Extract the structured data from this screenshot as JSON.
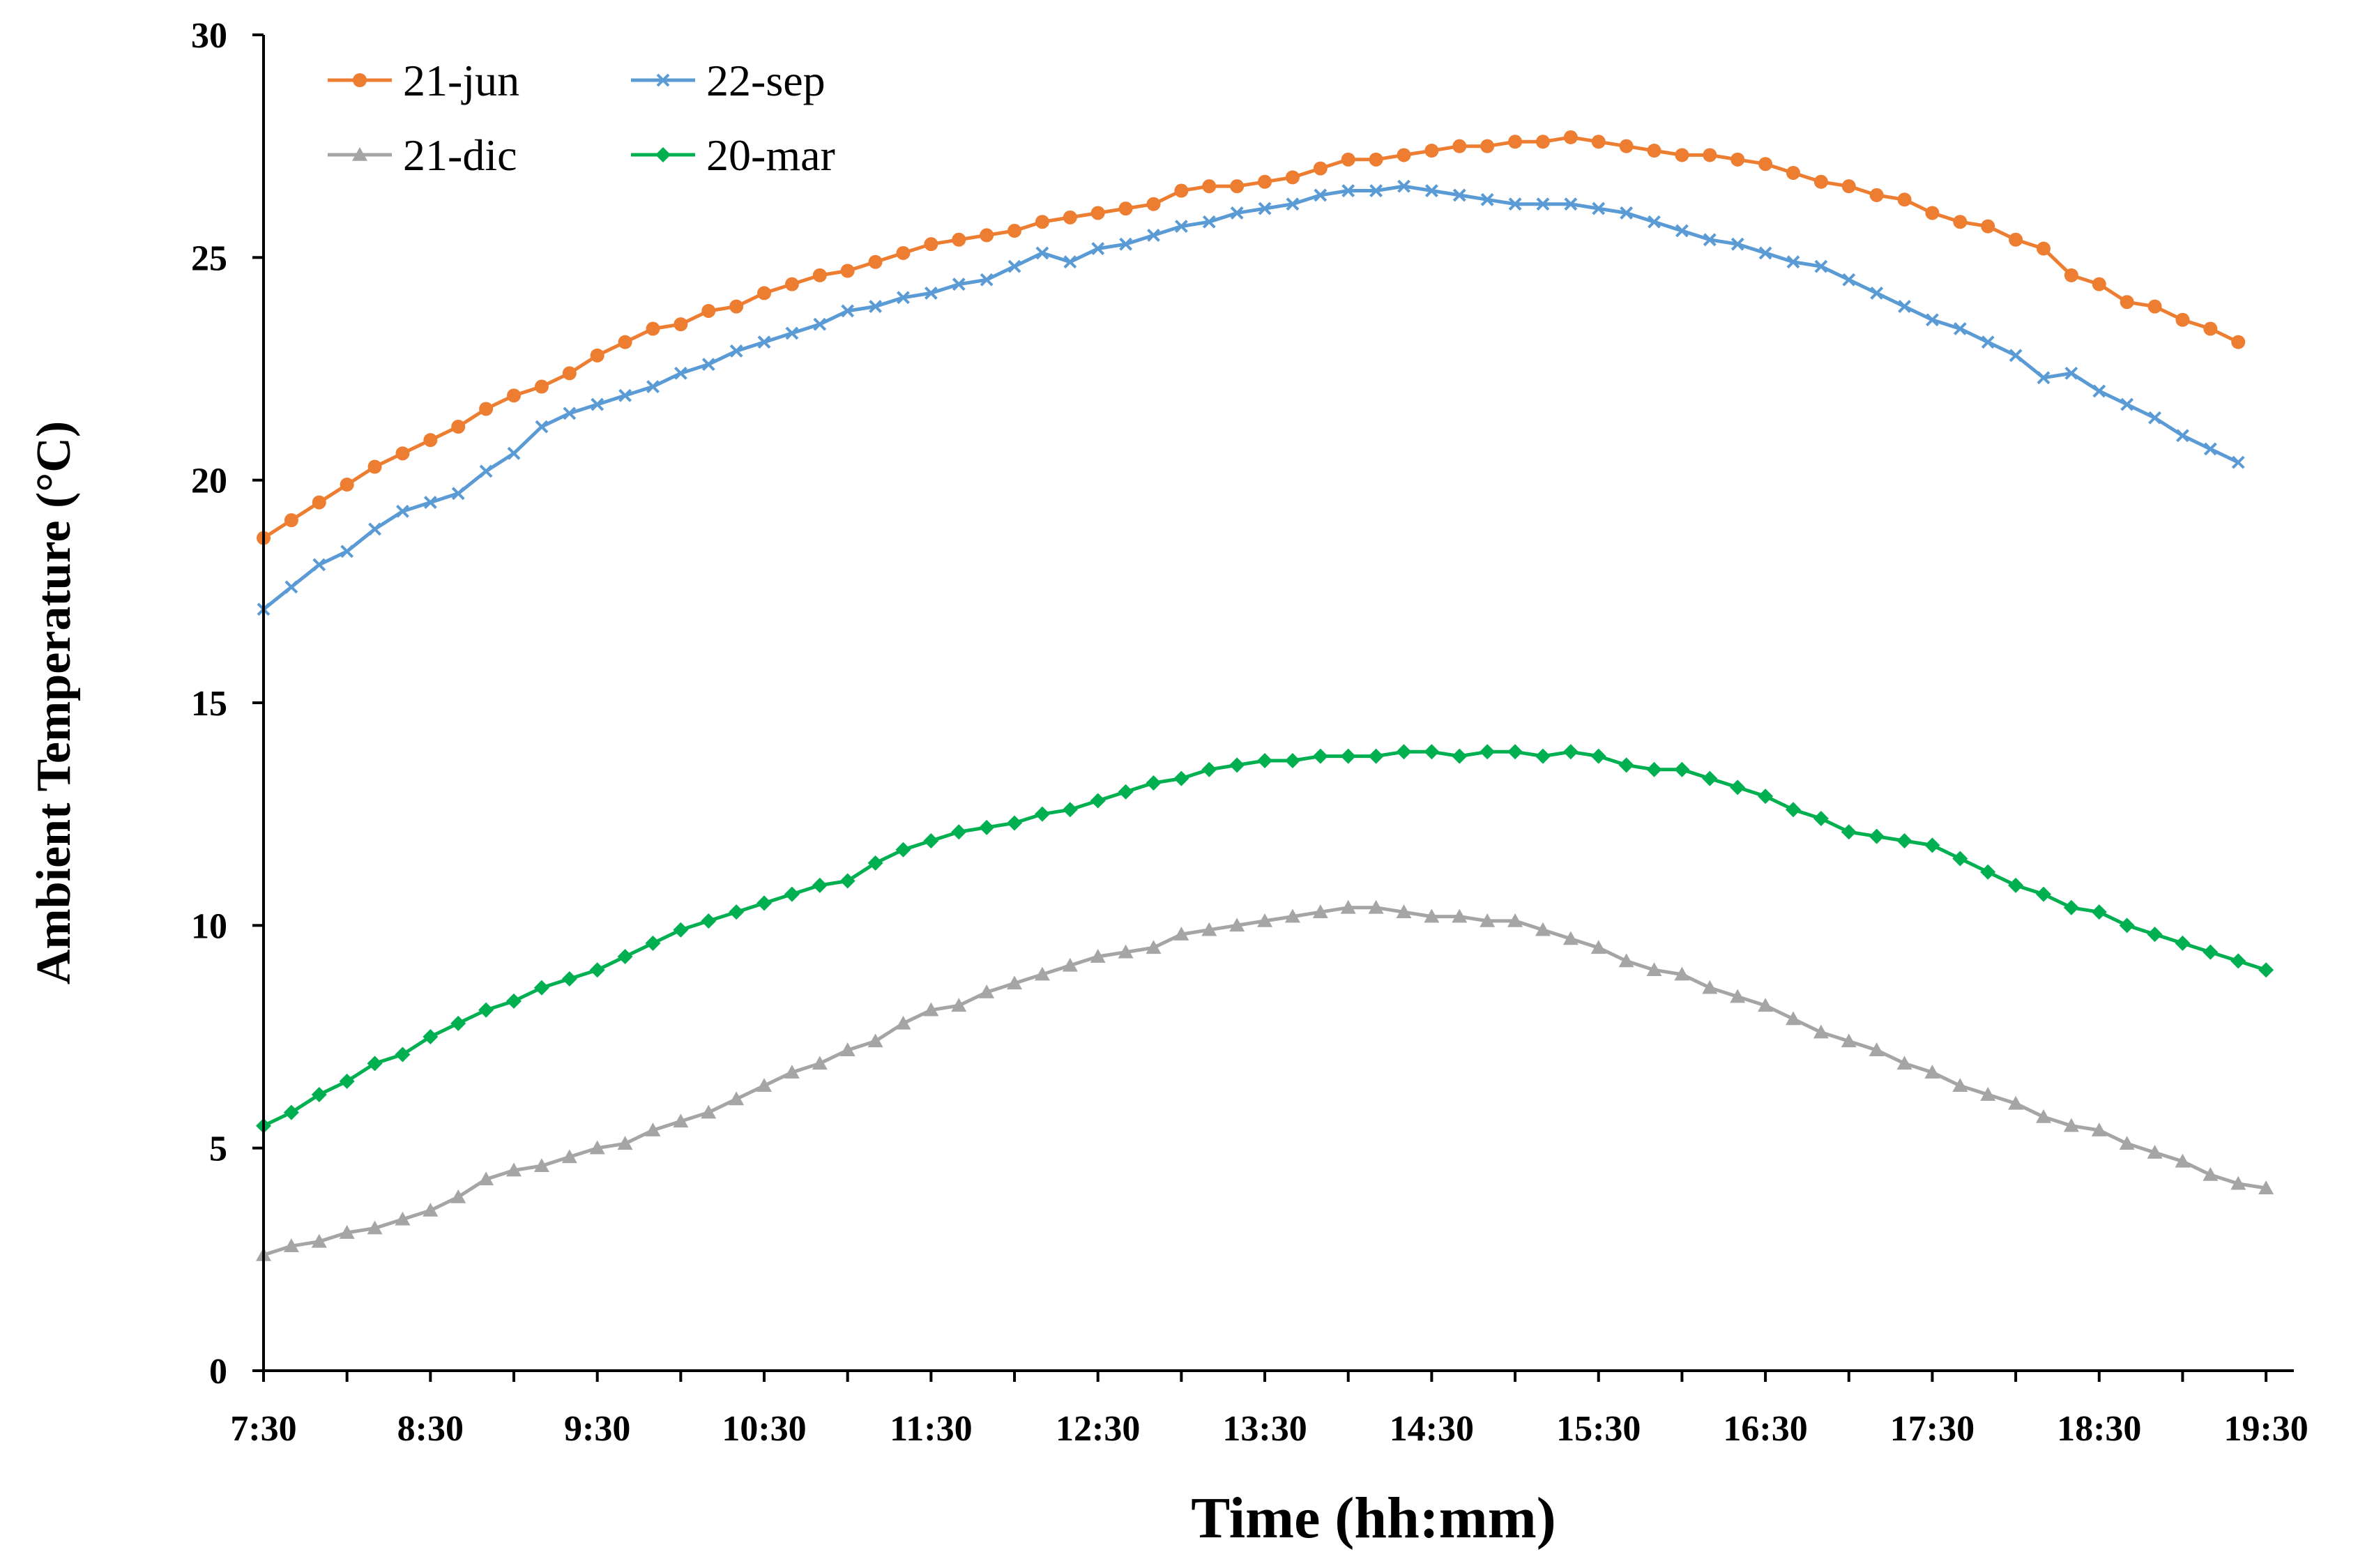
{
  "chart_data": {
    "type": "line",
    "title": "",
    "xlabel": "Time (hh:mm)",
    "ylabel": "Ambient Temperature  (°C)",
    "x_start_minutes": 450,
    "x_step_minutes": 10,
    "xlim_minutes": [
      450,
      1180
    ],
    "ylim": [
      0,
      30
    ],
    "y_ticks": [
      "0",
      "5",
      "10",
      "15",
      "20",
      "25",
      "30"
    ],
    "x_ticks": [
      "7:30",
      "8:30",
      "9:30",
      "10:30",
      "11:30",
      "12:30",
      "13:30",
      "14:30",
      "15:30",
      "16:30",
      "17:30",
      "18:30",
      "19:30"
    ],
    "legend_position": "top-left",
    "grid": false,
    "series": [
      {
        "name": "21-jun",
        "color": "#ED7D31",
        "marker": "circle",
        "values": [
          18.7,
          19.1,
          19.5,
          19.9,
          20.3,
          20.6,
          20.9,
          21.2,
          21.6,
          21.9,
          22.1,
          22.4,
          22.8,
          23.1,
          23.4,
          23.5,
          23.8,
          23.9,
          24.2,
          24.4,
          24.6,
          24.7,
          24.9,
          25.1,
          25.3,
          25.4,
          25.5,
          25.6,
          25.8,
          25.9,
          26.0,
          26.1,
          26.2,
          26.5,
          26.6,
          26.6,
          26.7,
          26.8,
          27.0,
          27.2,
          27.2,
          27.3,
          27.4,
          27.5,
          27.5,
          27.6,
          27.6,
          27.7,
          27.6,
          27.5,
          27.4,
          27.3,
          27.3,
          27.2,
          27.1,
          26.9,
          26.7,
          26.6,
          26.4,
          26.3,
          26.0,
          25.8,
          25.7,
          25.4,
          25.2,
          24.6,
          24.4,
          24.0,
          23.9,
          23.6,
          23.4,
          23.1
        ]
      },
      {
        "name": "22-sep",
        "color": "#5B9BD5",
        "marker": "x",
        "values": [
          17.1,
          17.6,
          18.1,
          18.4,
          18.9,
          19.3,
          19.5,
          19.7,
          20.2,
          20.6,
          21.2,
          21.5,
          21.7,
          21.9,
          22.1,
          22.4,
          22.6,
          22.9,
          23.1,
          23.3,
          23.5,
          23.8,
          23.9,
          24.1,
          24.2,
          24.4,
          24.5,
          24.8,
          25.1,
          24.9,
          25.2,
          25.3,
          25.5,
          25.7,
          25.8,
          26.0,
          26.1,
          26.2,
          26.4,
          26.5,
          26.5,
          26.6,
          26.5,
          26.4,
          26.3,
          26.2,
          26.2,
          26.2,
          26.1,
          26.0,
          25.8,
          25.6,
          25.4,
          25.3,
          25.1,
          24.9,
          24.8,
          24.5,
          24.2,
          23.9,
          23.6,
          23.4,
          23.1,
          22.8,
          22.3,
          22.4,
          22.0,
          21.7,
          21.4,
          21.0,
          20.7,
          20.4
        ]
      },
      {
        "name": "21-dic",
        "color": "#A5A5A5",
        "marker": "triangle",
        "values": [
          2.6,
          2.8,
          2.9,
          3.1,
          3.2,
          3.4,
          3.6,
          3.9,
          4.3,
          4.5,
          4.6,
          4.8,
          5.0,
          5.1,
          5.4,
          5.6,
          5.8,
          6.1,
          6.4,
          6.7,
          6.9,
          7.2,
          7.4,
          7.8,
          8.1,
          8.2,
          8.5,
          8.7,
          8.9,
          9.1,
          9.3,
          9.4,
          9.5,
          9.8,
          9.9,
          10.0,
          10.1,
          10.2,
          10.3,
          10.4,
          10.4,
          10.3,
          10.2,
          10.2,
          10.1,
          10.1,
          9.9,
          9.7,
          9.5,
          9.2,
          9.0,
          8.9,
          8.6,
          8.4,
          8.2,
          7.9,
          7.6,
          7.4,
          7.2,
          6.9,
          6.7,
          6.4,
          6.2,
          6.0,
          5.7,
          5.5,
          5.4,
          5.1,
          4.9,
          4.7,
          4.4,
          4.2,
          4.1
        ]
      },
      {
        "name": "20-mar",
        "color": "#00B050",
        "marker": "diamond",
        "values": [
          5.5,
          5.8,
          6.2,
          6.5,
          6.9,
          7.1,
          7.5,
          7.8,
          8.1,
          8.3,
          8.6,
          8.8,
          9.0,
          9.3,
          9.6,
          9.9,
          10.1,
          10.3,
          10.5,
          10.7,
          10.9,
          11.0,
          11.4,
          11.7,
          11.9,
          12.1,
          12.2,
          12.3,
          12.5,
          12.6,
          12.8,
          13.0,
          13.2,
          13.3,
          13.5,
          13.6,
          13.7,
          13.7,
          13.8,
          13.8,
          13.8,
          13.9,
          13.9,
          13.8,
          13.9,
          13.9,
          13.8,
          13.9,
          13.8,
          13.6,
          13.5,
          13.5,
          13.3,
          13.1,
          12.9,
          12.6,
          12.4,
          12.1,
          12.0,
          11.9,
          11.8,
          11.5,
          11.2,
          10.9,
          10.7,
          10.4,
          10.3,
          10.0,
          9.8,
          9.6,
          9.4,
          9.2,
          9.0
        ]
      }
    ]
  }
}
